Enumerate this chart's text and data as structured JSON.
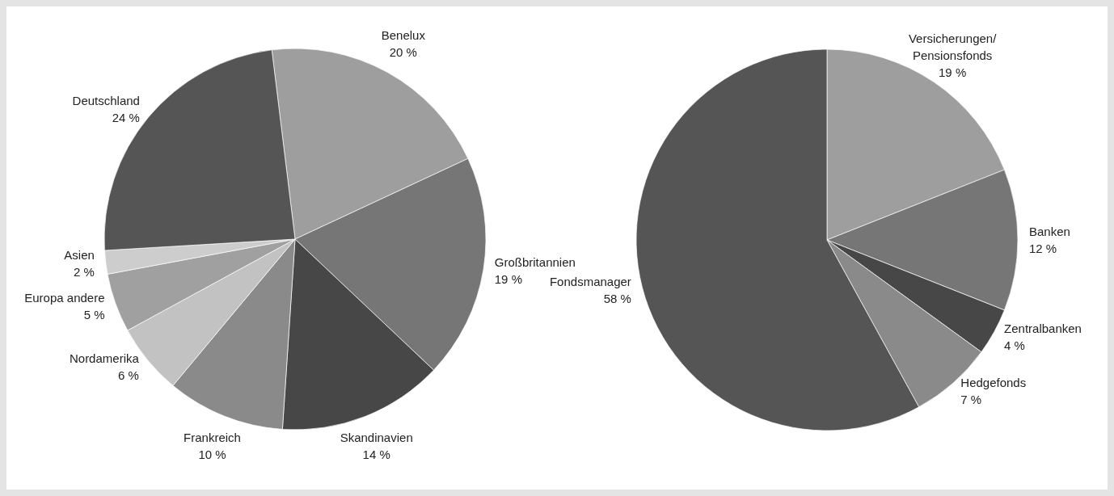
{
  "chart_data": [
    {
      "type": "pie",
      "categories": [
        "Benelux",
        "Großbritannien",
        "Skandinavien",
        "Frankreich",
        "Nordamerika",
        "Europa andere",
        "Asien",
        "Deutschland"
      ],
      "values": [
        20,
        19,
        14,
        10,
        6,
        5,
        2,
        24
      ],
      "colors": [
        "#9e9e9e",
        "#767676",
        "#474747",
        "#8a8a8a",
        "#c2c2c2",
        "#a0a0a0",
        "#cdcdcd",
        "#555555"
      ],
      "value_labels": [
        "20 %",
        "19 %",
        "14 %",
        "10 %",
        "6 %",
        "5 %",
        "2 %",
        "24 %"
      ]
    },
    {
      "type": "pie",
      "categories": [
        "Versicherungen/Pensionsfonds",
        "Banken",
        "Zentralbanken",
        "Hedgefonds",
        "Fondsmanager"
      ],
      "values": [
        19,
        12,
        4,
        7,
        58
      ],
      "colors": [
        "#9e9e9e",
        "#767676",
        "#474747",
        "#8a8a8a",
        "#555555"
      ],
      "value_labels": [
        "19 %",
        "12 %",
        "4 %",
        "7 %",
        "58 %"
      ]
    }
  ]
}
